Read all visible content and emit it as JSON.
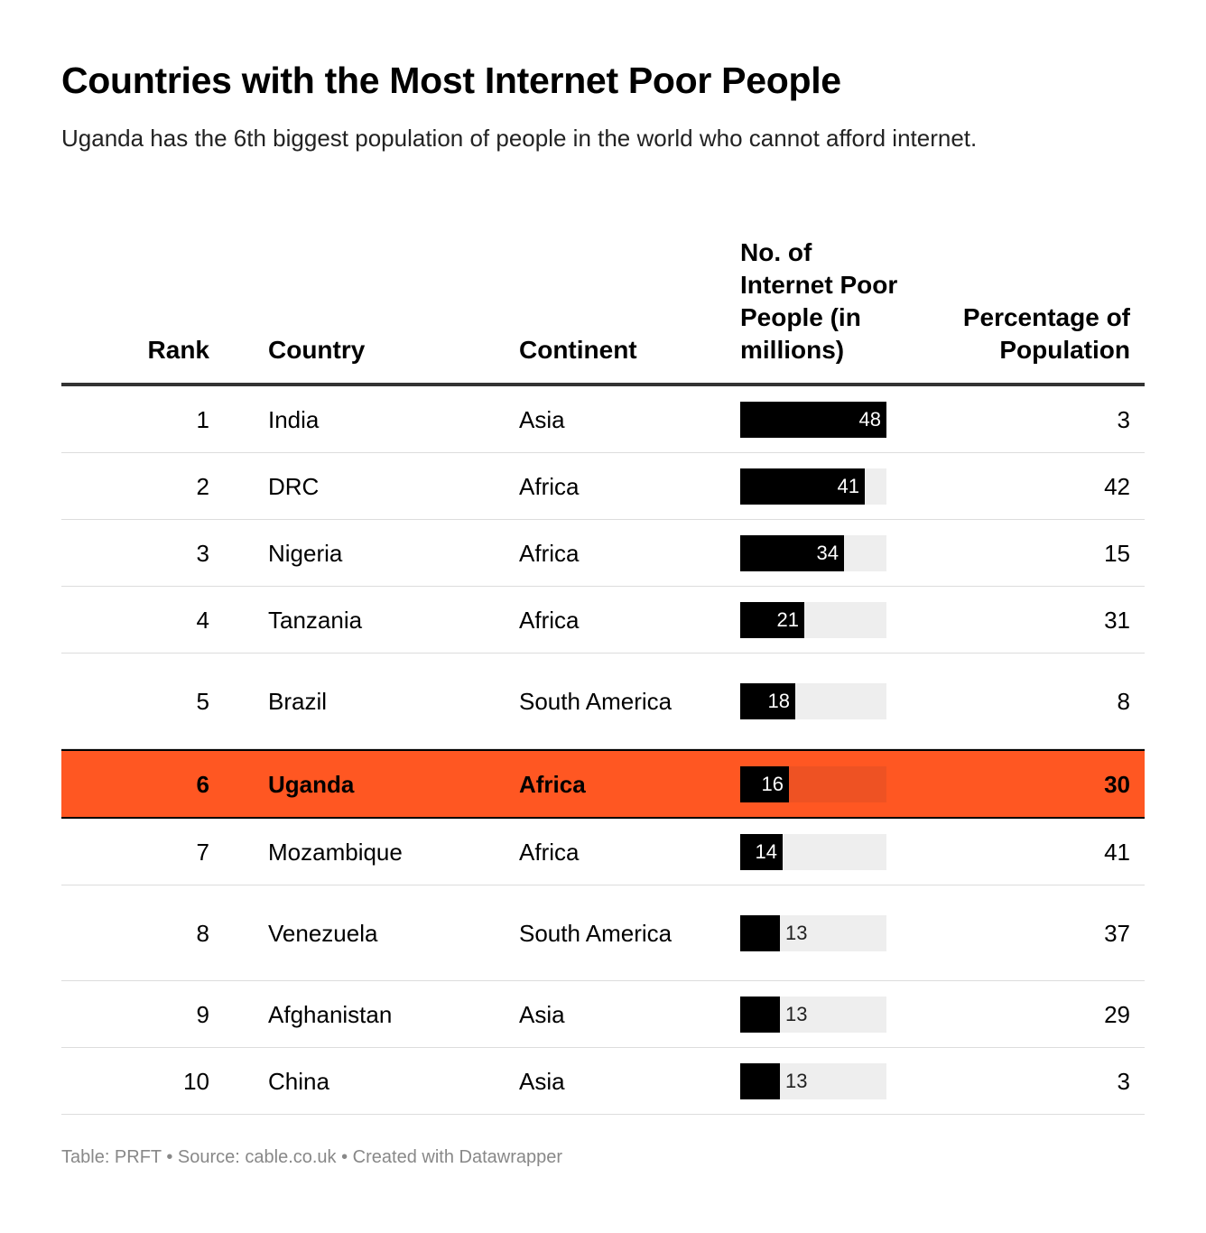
{
  "title": "Countries with the Most Internet Poor People",
  "subtitle": "Uganda has the 6th biggest population of people in the world who cannot afford internet.",
  "footer": "Table: PRFT • Source: cable.co.uk • Created with Datawrapper",
  "colors": {
    "highlight": "#ff5722",
    "bar": "#000000",
    "bar_track": "#eeeeee"
  },
  "chart_data": {
    "type": "table",
    "columns": {
      "rank": "Rank",
      "country": "Country",
      "continent": "Continent",
      "count": "No. of Internet Poor People (in millions)",
      "pct": "Percentage of Population"
    },
    "bar_max": 48,
    "highlight_rank": 6,
    "rows": [
      {
        "rank": "1",
        "country": "India",
        "continent": "Asia",
        "count": 48,
        "pct": "3"
      },
      {
        "rank": "2",
        "country": "DRC",
        "continent": "Africa",
        "count": 41,
        "pct": "42"
      },
      {
        "rank": "3",
        "country": "Nigeria",
        "continent": "Africa",
        "count": 34,
        "pct": "15"
      },
      {
        "rank": "4",
        "country": "Tanzania",
        "continent": "Africa",
        "count": 21,
        "pct": "31"
      },
      {
        "rank": "5",
        "country": "Brazil",
        "continent": "South America",
        "count": 18,
        "pct": "8"
      },
      {
        "rank": "6",
        "country": "Uganda",
        "continent": "Africa",
        "count": 16,
        "pct": "30"
      },
      {
        "rank": "7",
        "country": "Mozambique",
        "continent": "Africa",
        "count": 14,
        "pct": "41"
      },
      {
        "rank": "8",
        "country": "Venezuela",
        "continent": "South America",
        "count": 13,
        "pct": "37"
      },
      {
        "rank": "9",
        "country": "Afghanistan",
        "continent": "Asia",
        "count": 13,
        "pct": "29"
      },
      {
        "rank": "10",
        "country": "China",
        "continent": "Asia",
        "count": 13,
        "pct": "3"
      }
    ]
  }
}
